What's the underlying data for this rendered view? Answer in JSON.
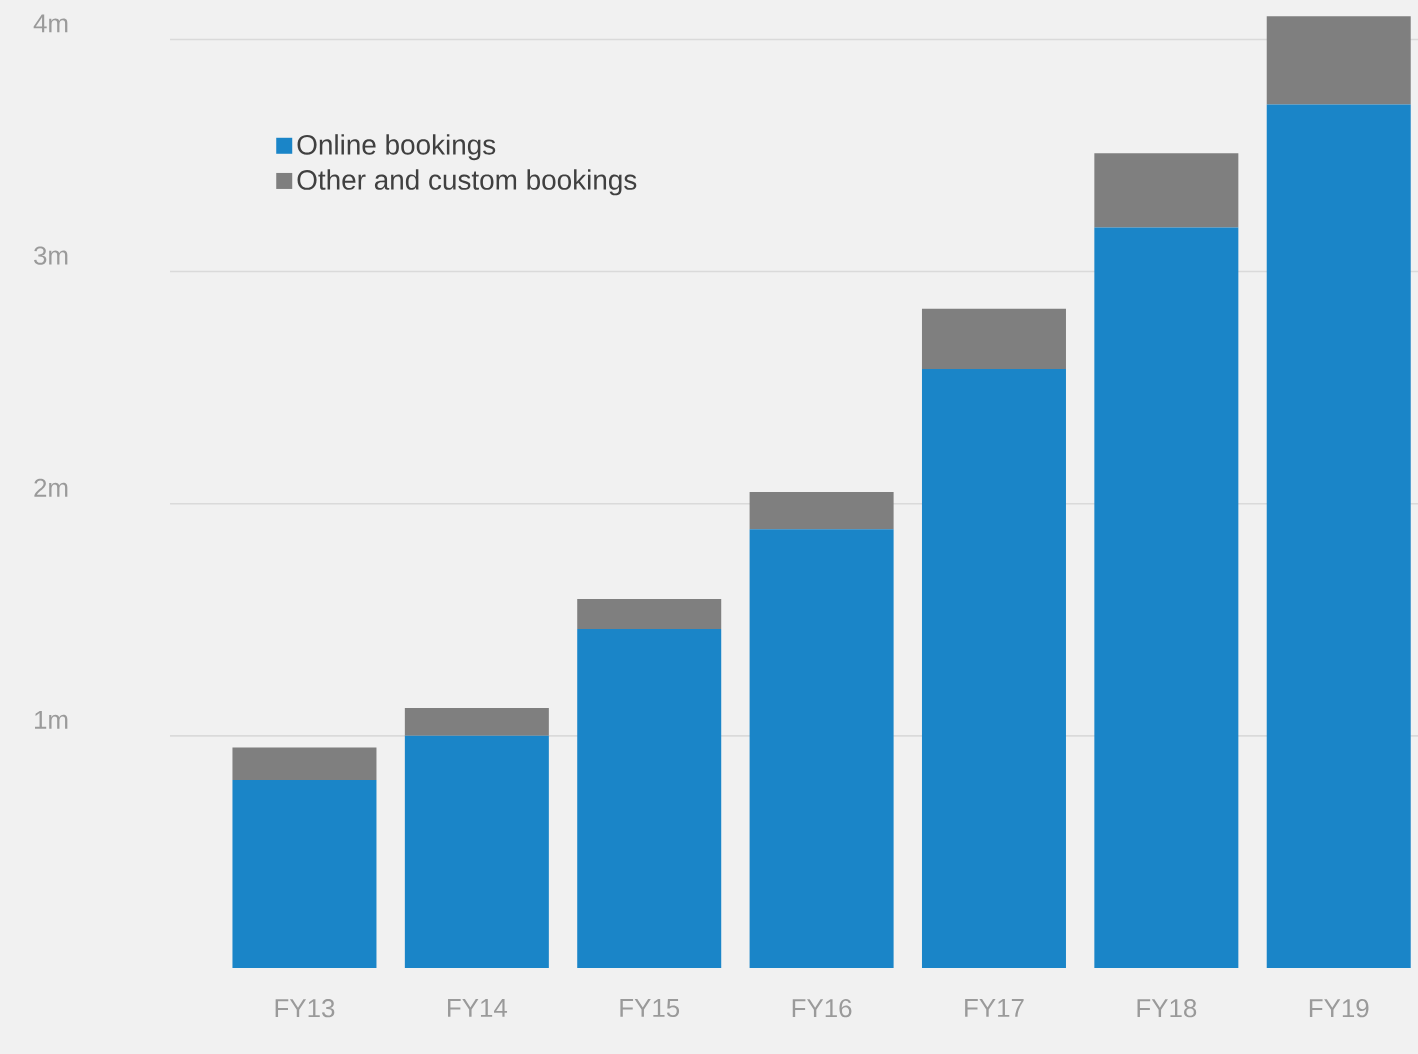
{
  "chart_data": {
    "type": "bar",
    "stacked": true,
    "categories": [
      "FY13",
      "FY14",
      "FY15",
      "FY16",
      "FY17",
      "FY18",
      "FY19"
    ],
    "series": [
      {
        "name": "Online bookings",
        "color": "#1a85c8",
        "values": [
          0.81,
          1.0,
          1.46,
          1.89,
          2.58,
          3.19,
          3.72
        ]
      },
      {
        "name": "Other and custom bookings",
        "color": "#7f7f7f",
        "values": [
          0.14,
          0.12,
          0.13,
          0.16,
          0.26,
          0.32,
          0.38
        ]
      }
    ],
    "ylim": [
      0,
      4.17
    ],
    "yticks": [
      {
        "value": 1,
        "label": "1m"
      },
      {
        "value": 2,
        "label": "2m"
      },
      {
        "value": 3,
        "label": "3m"
      },
      {
        "value": 4,
        "label": "4m"
      }
    ],
    "grid": "y",
    "legend": "top left"
  }
}
